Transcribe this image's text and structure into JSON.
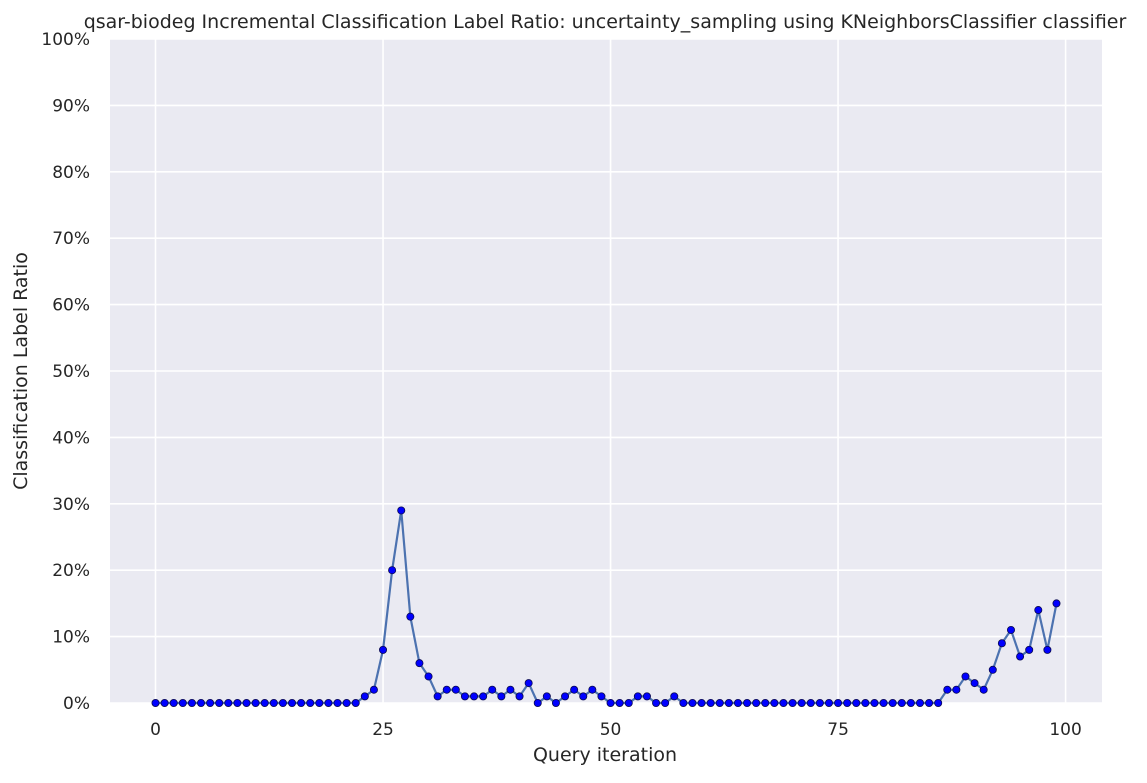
{
  "chart_data": {
    "type": "line",
    "title": "qsar-biodeg Incremental Classification Label Ratio: uncertainty_sampling using KNeighborsClassifier classifier",
    "xlabel": "Query iteration",
    "ylabel": "Classification Label Ratio",
    "xlim": [
      -5,
      104
    ],
    "ylim": [
      0,
      1
    ],
    "x_ticks": [
      0,
      25,
      50,
      75,
      100
    ],
    "x_tick_labels": [
      "0",
      "25",
      "50",
      "75",
      "100"
    ],
    "y_ticks": [
      0,
      0.1,
      0.2,
      0.3,
      0.4,
      0.5,
      0.6,
      0.7,
      0.8,
      0.9,
      1.0
    ],
    "y_tick_labels": [
      "0%",
      "10%",
      "20%",
      "30%",
      "40%",
      "50%",
      "60%",
      "70%",
      "80%",
      "90%",
      "100%"
    ],
    "grid": true,
    "background": "#EAEAF2",
    "line_color": "#4C72B0",
    "marker_color": "#0000FF",
    "series": [
      {
        "x": [
          0,
          1,
          2,
          3,
          4,
          5,
          6,
          7,
          8,
          9,
          10,
          11,
          12,
          13,
          14,
          15,
          16,
          17,
          18,
          19,
          20,
          21,
          22,
          23,
          24,
          25,
          26,
          27,
          28,
          29,
          30,
          31,
          32,
          33,
          34,
          35,
          36,
          37,
          38,
          39,
          40,
          41,
          42,
          43,
          44,
          45,
          46,
          47,
          48,
          49,
          50,
          51,
          52,
          53,
          54,
          55,
          56,
          57,
          58,
          59,
          60,
          61,
          62,
          63,
          64,
          65,
          66,
          67,
          68,
          69,
          70,
          71,
          72,
          73,
          74,
          75,
          76,
          77,
          78,
          79,
          80,
          81,
          82,
          83,
          84,
          85,
          86,
          87,
          88,
          89,
          90,
          91,
          92,
          93,
          94,
          95,
          96,
          97,
          98,
          99
        ],
        "values": [
          0,
          0,
          0,
          0,
          0,
          0,
          0,
          0,
          0,
          0,
          0,
          0,
          0,
          0,
          0,
          0,
          0,
          0,
          0,
          0,
          0,
          0,
          0,
          0.01,
          0.02,
          0.08,
          0.2,
          0.29,
          0.13,
          0.06,
          0.04,
          0.01,
          0.02,
          0.02,
          0.01,
          0.01,
          0.01,
          0.02,
          0.01,
          0.02,
          0.01,
          0.03,
          0,
          0.01,
          0,
          0.01,
          0.02,
          0.01,
          0.02,
          0.01,
          0,
          0,
          0,
          0.01,
          0.01,
          0,
          0,
          0.01,
          0,
          0,
          0,
          0,
          0,
          0,
          0,
          0,
          0,
          0,
          0,
          0,
          0,
          0,
          0,
          0,
          0,
          0,
          0,
          0,
          0,
          0,
          0,
          0,
          0,
          0,
          0,
          0,
          0,
          0.02,
          0.02,
          0.04,
          0.03,
          0.02,
          0.05,
          0.09,
          0.11,
          0.07,
          0.08,
          0.14,
          0.08,
          0.15
        ]
      }
    ]
  }
}
